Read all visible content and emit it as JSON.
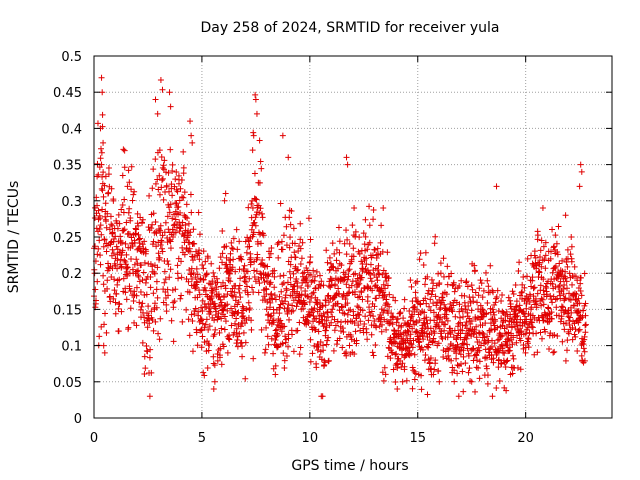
{
  "chart_data": {
    "type": "scatter",
    "title": "Day 258 of 2024, SRMTID for receiver yula",
    "xlabel": "GPS time / hours",
    "ylabel": "SRMTID / TECUs",
    "xlim": [
      0,
      24
    ],
    "ylim": [
      0,
      0.5
    ],
    "x_ticks": [
      0,
      5,
      10,
      15,
      20
    ],
    "x_tick_labels": [
      "0",
      "5",
      "10",
      "15",
      "20"
    ],
    "y_ticks": [
      0,
      0.05,
      0.1,
      0.15,
      0.2,
      0.25,
      0.3,
      0.35,
      0.4,
      0.45,
      0.5
    ],
    "y_tick_labels": [
      "0",
      "0.05",
      "0.1",
      "0.15",
      "0.2",
      "0.25",
      "0.3",
      "0.35",
      "0.4",
      "0.45",
      "0.5"
    ],
    "grid": true,
    "marker": "+",
    "series": [
      {
        "name": "SRMTID",
        "color": "#e00000",
        "profile": [
          [
            0.0,
            0.2,
            0.06
          ],
          [
            0.3,
            0.3,
            0.09
          ],
          [
            0.5,
            0.25,
            0.07
          ],
          [
            1.0,
            0.23,
            0.05
          ],
          [
            1.5,
            0.24,
            0.05
          ],
          [
            2.0,
            0.23,
            0.05
          ],
          [
            2.5,
            0.17,
            0.06
          ],
          [
            3.0,
            0.27,
            0.08
          ],
          [
            3.5,
            0.26,
            0.07
          ],
          [
            4.0,
            0.25,
            0.06
          ],
          [
            4.5,
            0.21,
            0.05
          ],
          [
            5.0,
            0.16,
            0.04
          ],
          [
            5.5,
            0.14,
            0.04
          ],
          [
            6.0,
            0.17,
            0.05
          ],
          [
            6.5,
            0.18,
            0.04
          ],
          [
            7.0,
            0.15,
            0.04
          ],
          [
            7.5,
            0.29,
            0.07
          ],
          [
            8.0,
            0.17,
            0.04
          ],
          [
            8.5,
            0.15,
            0.04
          ],
          [
            9.0,
            0.19,
            0.06
          ],
          [
            9.5,
            0.19,
            0.04
          ],
          [
            10.0,
            0.15,
            0.04
          ],
          [
            10.5,
            0.12,
            0.04
          ],
          [
            11.0,
            0.17,
            0.04
          ],
          [
            11.5,
            0.17,
            0.04
          ],
          [
            12.0,
            0.17,
            0.05
          ],
          [
            12.5,
            0.18,
            0.05
          ],
          [
            13.0,
            0.19,
            0.05
          ],
          [
            13.5,
            0.15,
            0.04
          ],
          [
            14.0,
            0.1,
            0.03
          ],
          [
            14.5,
            0.12,
            0.03
          ],
          [
            15.0,
            0.13,
            0.04
          ],
          [
            15.5,
            0.13,
            0.04
          ],
          [
            16.0,
            0.14,
            0.04
          ],
          [
            16.5,
            0.14,
            0.04
          ],
          [
            17.0,
            0.12,
            0.04
          ],
          [
            17.5,
            0.13,
            0.04
          ],
          [
            18.0,
            0.13,
            0.04
          ],
          [
            18.5,
            0.12,
            0.04
          ],
          [
            19.0,
            0.1,
            0.03
          ],
          [
            19.5,
            0.13,
            0.03
          ],
          [
            20.0,
            0.14,
            0.03
          ],
          [
            20.5,
            0.18,
            0.04
          ],
          [
            21.0,
            0.17,
            0.04
          ],
          [
            21.5,
            0.18,
            0.04
          ],
          [
            22.0,
            0.18,
            0.04
          ],
          [
            22.5,
            0.14,
            0.04
          ],
          [
            22.8,
            0.12,
            0.03
          ]
        ],
        "points": [
          [
            0.35,
            0.47
          ],
          [
            0.38,
            0.45
          ],
          [
            0.3,
            0.4
          ],
          [
            0.42,
            0.38
          ],
          [
            0.35,
            0.35
          ],
          [
            2.85,
            0.44
          ],
          [
            2.95,
            0.42
          ],
          [
            3.5,
            0.45
          ],
          [
            3.55,
            0.43
          ],
          [
            3.05,
            0.37
          ],
          [
            4.45,
            0.41
          ],
          [
            4.5,
            0.39
          ],
          [
            4.55,
            0.38
          ],
          [
            7.5,
            0.44
          ],
          [
            7.55,
            0.42
          ],
          [
            7.4,
            0.39
          ],
          [
            7.35,
            0.37
          ],
          [
            8.75,
            0.39
          ],
          [
            9.0,
            0.36
          ],
          [
            11.7,
            0.36
          ],
          [
            11.75,
            0.35
          ],
          [
            6.05,
            0.3
          ],
          [
            6.1,
            0.31
          ],
          [
            18.65,
            0.32
          ],
          [
            22.55,
            0.35
          ],
          [
            22.6,
            0.34
          ],
          [
            22.5,
            0.32
          ],
          [
            0.45,
            0.1
          ],
          [
            0.5,
            0.09
          ],
          [
            1.15,
            0.12
          ],
          [
            5.55,
            0.04
          ],
          [
            5.6,
            0.05
          ],
          [
            10.3,
            0.07
          ],
          [
            14.05,
            0.04
          ],
          [
            14.3,
            0.05
          ],
          [
            15.05,
            0.06
          ],
          [
            16.0,
            0.05
          ],
          [
            17.5,
            0.05
          ],
          [
            19.3,
            0.06
          ],
          [
            19.35,
            0.07
          ],
          [
            20.8,
            0.29
          ],
          [
            21.85,
            0.28
          ],
          [
            13.4,
            0.29
          ],
          [
            12.05,
            0.29
          ],
          [
            1.55,
            0.32
          ]
        ]
      }
    ]
  }
}
